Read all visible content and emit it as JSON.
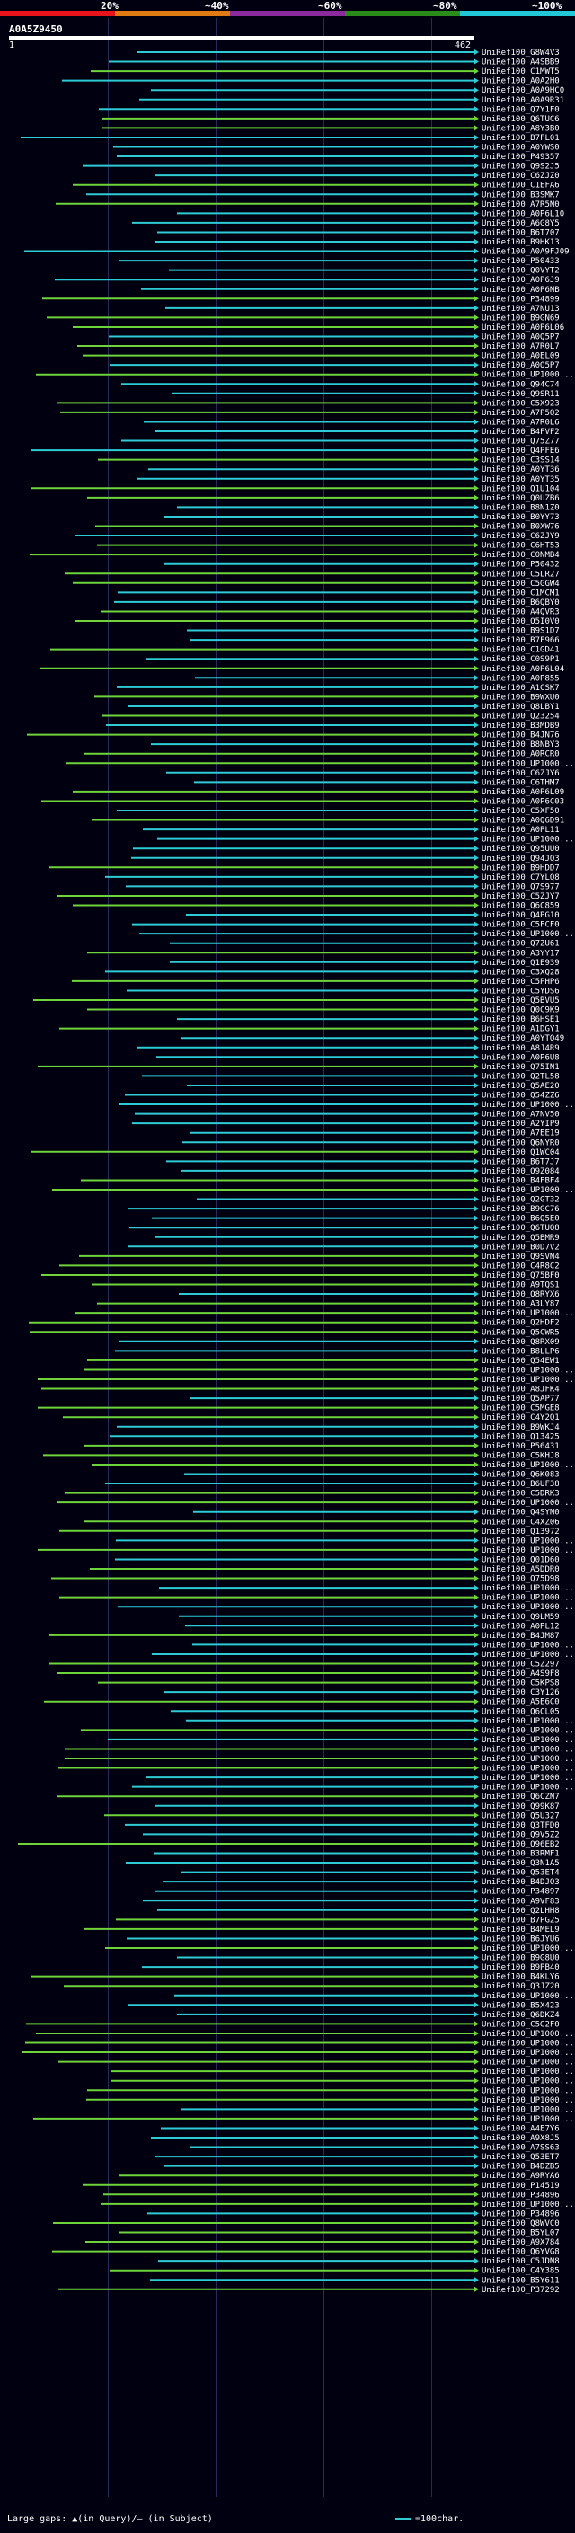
{
  "scale": {
    "labels": [
      "20%",
      "~40%",
      "~60%",
      "~80%",
      "~100%"
    ],
    "colors": [
      "#e8131b",
      "#e07a12",
      "#8b2a9c",
      "#2a8a1a",
      "#21c7d6"
    ]
  },
  "query": {
    "name": "A0A5Z9450",
    "start": "1",
    "end": "462"
  },
  "hits": [
    "UniRef100_G8W4V3",
    "UniRef100_A4SBB9",
    "UniRef100_C1MWT5",
    "UniRef100_A0A2H0",
    "UniRef100_A0A9HC0",
    "UniRef100_A0A9R31",
    "UniRef100_Q7Y1F0",
    "UniRef100_Q6TUC6",
    "UniRef100_A8Y3B0",
    "UniRef100_B7FL01",
    "UniRef100_A0YWS0",
    "UniRef100_P49357",
    "UniRef100_Q9S2J5",
    "UniRef100_C6ZJZ0",
    "UniRef100_C1EFA6",
    "UniRef100_B3SMK7",
    "UniRef100_A7R5N0",
    "UniRef100_A0P6L10",
    "UniRef100_A6G8Y5",
    "UniRef100_B6T707",
    "UniRef100_B9HK13",
    "UniRef100_A0A9FJ09",
    "UniRef100_P50433",
    "UniRef100_Q0VYT2",
    "UniRef100_A0P6J9",
    "UniRef100_A0P6NB",
    "UniRef100_P34899",
    "UniRef100_A7NU13",
    "UniRef100_B9GN69",
    "UniRef100_A0P6L06",
    "UniRef100_A0Q5P7",
    "UniRef100_A7R0L7",
    "UniRef100_A0EL09",
    "UniRef100_A0Q5P7",
    "UniRef100_UP1000...",
    "UniRef100_Q94C74",
    "UniRef100_Q9SR11",
    "UniRef100_C5X923",
    "UniRef100_A7P5Q2",
    "UniRef100_A7R0L6",
    "UniRef100_B4FVF2",
    "UniRef100_Q75Z77",
    "UniRef100_Q4PFE6",
    "UniRef100_C3SS14",
    "UniRef100_A0YT36",
    "UniRef100_A0YT35",
    "UniRef100_Q1U104",
    "UniRef100_Q0UZB6",
    "UniRef100_B8N1Z0",
    "UniRef100_B0YY73",
    "UniRef100_B0XW76",
    "UniRef100_C6ZJY9",
    "UniRef100_C6HT53",
    "UniRef100_C0NMB4",
    "UniRef100_P50432",
    "UniRef100_C5LR27",
    "UniRef100_C5GGW4",
    "UniRef100_C1MCM1",
    "UniRef100_B6QBY0",
    "UniRef100_A4QVR3",
    "UniRef100_Q5I0V0",
    "UniRef100_B9S1D7",
    "UniRef100_B7F966",
    "UniRef100_C1GD41",
    "UniRef100_C0S9P1",
    "UniRef100_A0P6L04",
    "UniRef100_A0P855",
    "UniRef100_A1CSK7",
    "UniRef100_B9WXU0",
    "UniRef100_Q8LBY1",
    "UniRef100_Q23254",
    "UniRef100_B3MDB9",
    "UniRef100_B4JN76",
    "UniRef100_B8NBY3",
    "UniRef100_A0RCR0",
    "UniRef100_UP1000...",
    "UniRef100_C6ZJY6",
    "UniRef100_C6THM7",
    "UniRef100_A0P6L09",
    "UniRef100_A0P6C03",
    "UniRef100_C5XF50",
    "UniRef100_A0Q6D91",
    "UniRef100_A0PL11",
    "UniRef100_UP1000...",
    "UniRef100_Q95UU0",
    "UniRef100_Q94JQ3",
    "UniRef100_B9HDD7",
    "UniRef100_C7YLQ8",
    "UniRef100_Q7S977",
    "UniRef100_C5ZJY7",
    "UniRef100_Q6C859",
    "UniRef100_Q4PG10",
    "UniRef100_C5FCF0",
    "UniRef100_UP1000...",
    "UniRef100_Q7ZU61",
    "UniRef100_A3YY17",
    "UniRef100_Q1E939",
    "UniRef100_C3XQ28",
    "UniRef100_C5PHP6",
    "UniRef100_C5YDS6",
    "UniRef100_Q5BVU5",
    "UniRef100_Q0C9K9",
    "UniRef100_B6HSE1",
    "UniRef100_A1DGY1",
    "UniRef100_A0YTQ49",
    "UniRef100_A8J4R9",
    "UniRef100_A0P6U8",
    "UniRef100_Q75IN1",
    "UniRef100_Q2TL58",
    "UniRef100_Q5AE20",
    "UniRef100_Q54ZZ6",
    "UniRef100_UP1000...",
    "UniRef100_A7NV50",
    "UniRef100_A2YIP9",
    "UniRef100_A7EE19",
    "UniRef100_Q6NYR0",
    "UniRef100_Q1WC04",
    "UniRef100_B6T7J7",
    "UniRef100_Q9Z084",
    "UniRef100_B4FBF4",
    "UniRef100_UP1000...",
    "UniRef100_Q2GT32",
    "UniRef100_B9GC76",
    "UniRef100_B6Q5E0",
    "UniRef100_Q6TUQ8",
    "UniRef100_Q5BMR9",
    "UniRef100_B0D7V2",
    "UniRef100_Q9SVN4",
    "UniRef100_C4R8C2",
    "UniRef100_Q75BF0",
    "UniRef100_A9TQS1",
    "UniRef100_Q8RYX6",
    "UniRef100_A3LY87",
    "UniRef100_UP1000...",
    "UniRef100_Q2HDF2",
    "UniRef100_Q5CWR5",
    "UniRef100_Q8RX09",
    "UniRef100_B8LLP6",
    "UniRef100_Q54EW1",
    "UniRef100_UP1000...",
    "UniRef100_UP1000...",
    "UniRef100_A8JFK4",
    "UniRef100_Q5AP77",
    "UniRef100_C5MGE8",
    "UniRef100_C4Y2Q1",
    "UniRef100_B9WKJ4",
    "UniRef100_Q13425",
    "UniRef100_P56431",
    "UniRef100_C5KHJ8",
    "UniRef100_UP1000...",
    "UniRef100_Q6K083",
    "UniRef100_B6UF38",
    "UniRef100_C5DRK3",
    "UniRef100_UP1000...",
    "UniRef100_Q4SYN0",
    "UniRef100_C4XZ06",
    "UniRef100_Q13972",
    "UniRef100_UP1000...",
    "UniRef100_UP1000...",
    "UniRef100_Q01D60",
    "UniRef100_A5DDR0",
    "UniRef100_Q75D98",
    "UniRef100_UP1000...",
    "UniRef100_UP1000...",
    "UniRef100_UP1000...",
    "UniRef100_Q9LM59",
    "UniRef100_A0PL12",
    "UniRef100_B4JM87",
    "UniRef100_UP1000...",
    "UniRef100_UP1000...",
    "UniRef100_C5Z297",
    "UniRef100_A4S9F8",
    "UniRef100_C5KPS8",
    "UniRef100_C3Y126",
    "UniRef100_A5E6C0",
    "UniRef100_Q6CL05",
    "UniRef100_UP1000...",
    "UniRef100_UP1000...",
    "UniRef100_UP1000...",
    "UniRef100_UP1000...",
    "UniRef100_UP1000...",
    "UniRef100_UP1000...",
    "UniRef100_UP1000...",
    "UniRef100_UP1000...",
    "UniRef100_Q6CZN7",
    "UniRef100_Q99K87",
    "UniRef100_Q5U327",
    "UniRef100_Q3TFD0",
    "UniRef100_Q9V5Z2",
    "UniRef100_Q96EB2",
    "UniRef100_B3RMF1",
    "UniRef100_Q3N1A5",
    "UniRef100_Q53ET4",
    "UniRef100_B4DJQ3",
    "UniRef100_P34897",
    "UniRef100_A9VF83",
    "UniRef100_Q2LHH8",
    "UniRef100_B7PG25",
    "UniRef100_B4MEL9",
    "UniRef100_B6JYU6",
    "UniRef100_UP1000...",
    "UniRef100_B9G8U0",
    "UniRef100_B9PB40",
    "UniRef100_B4KLY6",
    "UniRef100_Q3JZ20",
    "UniRef100_UP1000...",
    "UniRef100_B5X423",
    "UniRef100_Q6DKZ4",
    "UniRef100_C5G2F0",
    "UniRef100_UP1000...",
    "UniRef100_UP1000...",
    "UniRef100_UP1000...",
    "UniRef100_UP1000...",
    "UniRef100_UP1000...",
    "UniRef100_UP1000...",
    "UniRef100_UP1000...",
    "UniRef100_UP1000...",
    "UniRef100_UP1000...",
    "UniRef100_UP1000...",
    "UniRef100_A4E7Y6",
    "UniRef100_A9X8J5",
    "UniRef100_A7SS63",
    "UniRef100_Q53ET7",
    "UniRef100_B4DZB5",
    "UniRef100_A9RYA6",
    "UniRef100_P14519",
    "UniRef100_P34896",
    "UniRef100_UP1000...",
    "UniRef100_P34896",
    "UniRef100_Q8WVC0",
    "UniRef100_B5YL07",
    "UniRef100_A9X784",
    "UniRef100_Q6YVG8",
    "UniRef100_C5JDN8",
    "UniRef100_C4Y385",
    "UniRef100_B5Y611",
    "UniRef100_P37292"
  ],
  "legend": {
    "gaps": "Large gaps: ▲(in Query)/— (in Subject)",
    "scale": "=100char."
  }
}
